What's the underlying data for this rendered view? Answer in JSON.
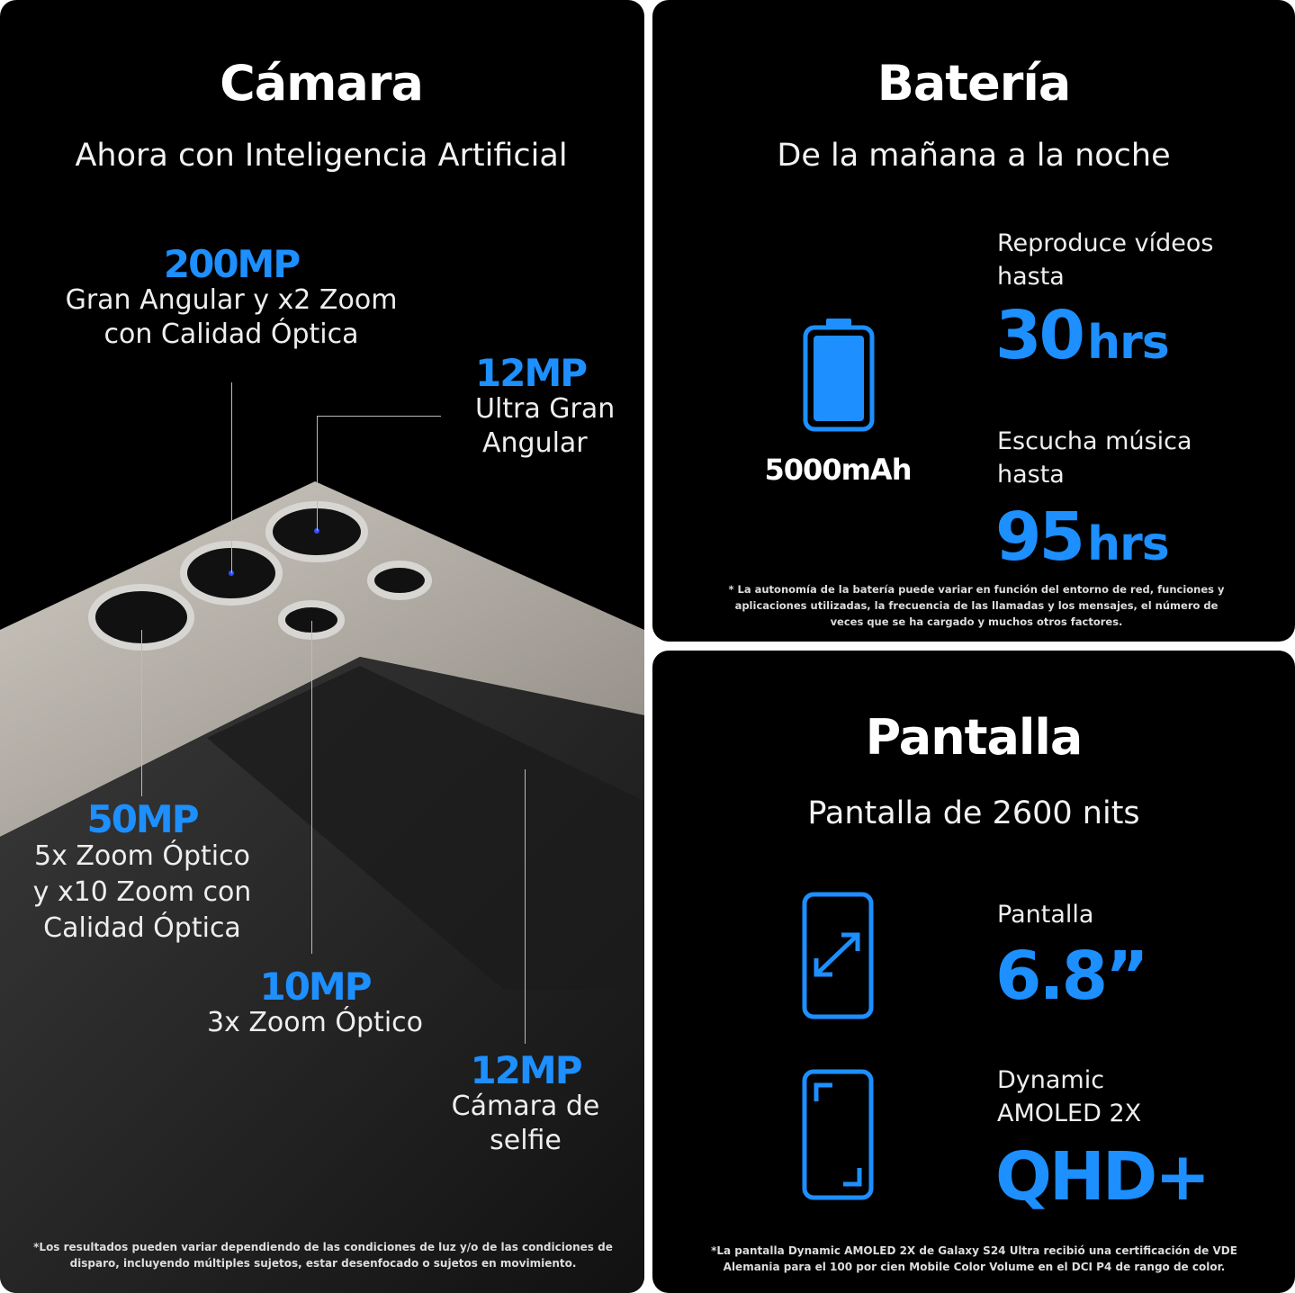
{
  "camera": {
    "title": "Cámara",
    "subtitle": "Ahora con Inteligencia Artificial",
    "specs": [
      {
        "mp": "200MP",
        "desc": [
          "Gran Angular y x2 Zoom",
          "con Calidad Óptica"
        ]
      },
      {
        "mp": "12MP",
        "desc": [
          "Ultra Gran",
          "Angular"
        ]
      },
      {
        "mp": "50MP",
        "desc": [
          "5x Zoom Óptico",
          "y x10 Zoom con",
          "Calidad Óptica"
        ]
      },
      {
        "mp": "10MP",
        "desc": [
          "3x Zoom Óptico"
        ]
      },
      {
        "mp": "12MP",
        "desc": [
          "Cámara de",
          "selfie"
        ]
      }
    ],
    "footnote": "*Los resultados pueden variar dependiendo de las condiciones de luz y/o de las condiciones de disparo, incluyendo múltiples sujetos, estar desenfocado o sujetos en movimiento."
  },
  "battery": {
    "title": "Batería",
    "subtitle": "De la mañana a la noche",
    "capacity": "5000mAh",
    "icon": "battery-full-icon",
    "video_label": [
      "Reproduce vídeos",
      "hasta"
    ],
    "video_value": "30",
    "video_unit": "hrs",
    "music_label": [
      "Escucha música",
      "hasta"
    ],
    "music_value": "95",
    "music_unit": "hrs",
    "footnote": "* La autonomía de la batería puede variar en función del entorno de red, funciones y aplicaciones utilizadas, la frecuencia de las llamadas y los mensajes, el número de veces que se ha cargado y muchos otros factores."
  },
  "display": {
    "title": "Pantalla",
    "subtitle": "Pantalla de 2600 nits",
    "size_label": "Pantalla",
    "size_value": "6.8”",
    "panel_label": [
      "Dynamic",
      "AMOLED 2X"
    ],
    "panel_value": "QHD+",
    "footnote": "*La pantalla Dynamic AMOLED 2X de Galaxy S24 Ultra recibió una certificación de VDE Alemania para el 100 por cien Mobile Color Volume en el DCI P4 de rango de color."
  },
  "colors": {
    "accent": "#1d8fff",
    "background": "#000000"
  }
}
